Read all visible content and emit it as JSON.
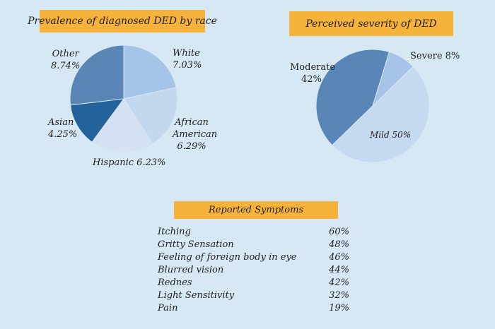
{
  "chart_data": [
    {
      "type": "pie",
      "title": "Prevalence of diagnosed DED by race",
      "slices": [
        {
          "label": "White",
          "value": 7.03,
          "value_label": "7.03%",
          "color": "#a5c4e8"
        },
        {
          "label": "African American",
          "value": 6.29,
          "value_label": "6.29%",
          "color": "#c3d7ef"
        },
        {
          "label": "Hispanic",
          "value": 6.23,
          "value_label": "6.23%",
          "color": "#d3e1f3"
        },
        {
          "label": "Asian",
          "value": 4.25,
          "value_label": "4.25%",
          "color": "#23629a"
        },
        {
          "label": "Other",
          "value": 8.74,
          "value_label": "8.74%",
          "color": "#5986b6"
        }
      ]
    },
    {
      "type": "pie",
      "title": "Perceived severity of DED",
      "slices": [
        {
          "label": "Severe",
          "value": 8,
          "value_label": "8%",
          "color": "#a5c4e8"
        },
        {
          "label": "Mild",
          "value": 50,
          "value_label": "50%",
          "color": "#c5d9f0"
        },
        {
          "label": "Moderate",
          "value": 42,
          "value_label": "42%",
          "color": "#5986b6"
        }
      ]
    },
    {
      "type": "table",
      "title": "Reported Symptoms",
      "rows": [
        {
          "symptom": "Itching",
          "value": "60%"
        },
        {
          "symptom": "Gritty Sensation",
          "value": "48%"
        },
        {
          "symptom": "Feeling of foreign body in eye",
          "value": "46%"
        },
        {
          "symptom": "Blurred vision",
          "value": "44%"
        },
        {
          "symptom": "Rednes",
          "value": "42%"
        },
        {
          "symptom": "Light Sensitivity",
          "value": "32%"
        },
        {
          "symptom": "Pain",
          "value": "19%"
        }
      ]
    }
  ],
  "labels": {
    "race": {
      "white": [
        "White",
        "7.03%"
      ],
      "african_american": [
        "African",
        "American",
        "6.29%"
      ],
      "hispanic": "Hispanic 6.23%",
      "asian": [
        "Asian",
        "4.25%"
      ],
      "other": [
        "Other",
        "8.74%"
      ]
    },
    "severity": {
      "severe": "Severe 8%",
      "moderate": [
        "Moderate",
        "42%"
      ],
      "mild": "Mild 50%"
    }
  }
}
